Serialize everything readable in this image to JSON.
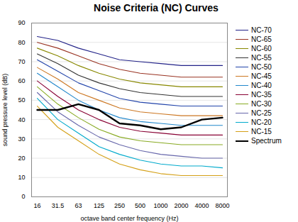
{
  "chart_data": {
    "type": "line",
    "title": "Noise Criteria (NC) Curves",
    "xlabel": "octave band center frequency (Hz)",
    "ylabel": "sound pressure level (dB)",
    "categories": [
      "16",
      "31.5",
      "63",
      "125",
      "250",
      "500",
      "1000",
      "2000",
      "4000",
      "8000"
    ],
    "series": [
      {
        "name": "NC-15",
        "color": "#d4a017",
        "values": [
          47,
          36,
          29,
          22,
          17,
          14,
          12,
          11,
          11,
          11
        ]
      },
      {
        "name": "NC-20",
        "color": "#00aacc",
        "values": [
          51,
          40,
          33,
          26,
          22,
          19,
          17,
          16,
          16,
          15
        ]
      },
      {
        "name": "NC-25",
        "color": "#6666aa",
        "values": [
          54,
          44,
          37,
          31,
          27,
          24,
          22,
          21,
          20,
          20
        ]
      },
      {
        "name": "NC-30",
        "color": "#88aa22",
        "values": [
          57,
          48,
          41,
          35,
          31,
          29,
          28,
          27,
          27,
          27
        ]
      },
      {
        "name": "NC-35",
        "color": "#880033",
        "values": [
          60,
          52,
          45,
          40,
          36,
          34,
          33,
          32,
          32,
          32
        ]
      },
      {
        "name": "NC-40",
        "color": "#2288cc",
        "values": [
          64,
          57,
          50,
          45,
          41,
          39,
          38,
          37,
          37,
          37
        ]
      },
      {
        "name": "NC-45",
        "color": "#cc7722",
        "values": [
          67,
          61,
          54,
          50,
          46,
          44,
          43,
          42,
          42,
          42
        ]
      },
      {
        "name": "NC-50",
        "color": "#2244aa",
        "values": [
          71,
          65,
          59,
          55,
          51,
          49,
          48,
          47,
          47,
          47
        ]
      },
      {
        "name": "NC-55",
        "color": "#333333",
        "values": [
          74,
          69,
          63,
          59,
          56,
          54,
          53,
          52,
          52,
          52
        ]
      },
      {
        "name": "NC-60",
        "color": "#888800",
        "values": [
          77,
          73,
          68,
          64,
          61,
          59,
          58,
          57,
          57,
          57
        ]
      },
      {
        "name": "NC-65",
        "color": "#993322",
        "values": [
          80,
          77,
          73,
          69,
          66,
          64,
          63,
          62,
          62,
          62
        ]
      },
      {
        "name": "NC-70",
        "color": "#222288",
        "values": [
          83,
          81,
          77,
          74,
          71,
          70,
          69,
          68,
          68,
          68
        ]
      },
      {
        "name": "Spectrum",
        "color": "#000000",
        "values": [
          45,
          45,
          48,
          45,
          38,
          37,
          35,
          36,
          40,
          41
        ]
      }
    ],
    "ylim": [
      0,
      90
    ],
    "yticks": [
      0,
      10,
      20,
      30,
      40,
      50,
      60,
      70,
      80,
      90
    ],
    "grid": true,
    "legend": "right"
  }
}
